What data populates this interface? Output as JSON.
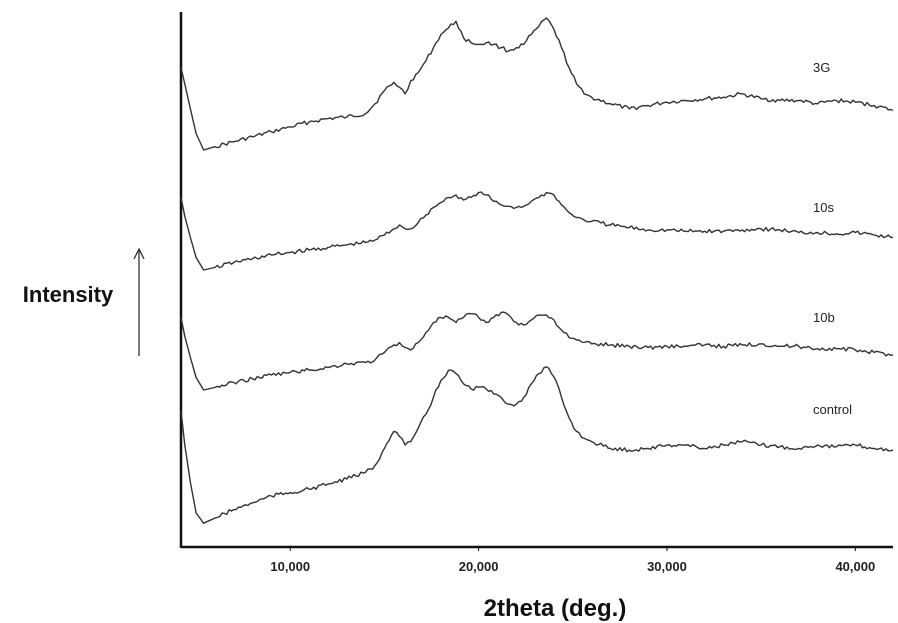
{
  "chart_data": {
    "type": "line",
    "xlabel": "2theta (deg.)",
    "ylabel": "Intensity",
    "xlim": [
      4.2,
      42
    ],
    "x_ticks": [
      {
        "value": 10,
        "label": "10,000"
      },
      {
        "value": 20,
        "label": "20,000"
      },
      {
        "value": 30,
        "label": "30,000"
      },
      {
        "value": 40,
        "label": "40,000"
      }
    ],
    "y_ticks": [],
    "grid": false,
    "legend": "inline labels at right end of each trace",
    "series": [
      {
        "name": "3G",
        "x": [
          4.2,
          4.4,
          4.7,
          5.0,
          5.4,
          6,
          7,
          8,
          9,
          10,
          11,
          12,
          13,
          14,
          14.5,
          15,
          15.5,
          15.8,
          16.1,
          16.4,
          16.8,
          17.2,
          17.6,
          18,
          18.4,
          18.8,
          19.2,
          19.6,
          20,
          20.4,
          20.8,
          21.2,
          21.6,
          22,
          22.4,
          22.8,
          23.2,
          23.6,
          24,
          24.4,
          24.8,
          25.2,
          25.6,
          26,
          27,
          28,
          29,
          30,
          31,
          32,
          33,
          34,
          35,
          36,
          37,
          38,
          39,
          40,
          41,
          42
        ],
        "y": [
          0.3,
          0.4,
          0.55,
          0.7,
          0.8,
          0.78,
          0.75,
          0.72,
          0.69,
          0.66,
          0.63,
          0.61,
          0.6,
          0.58,
          0.52,
          0.44,
          0.39,
          0.42,
          0.46,
          0.38,
          0.33,
          0.26,
          0.18,
          0.1,
          0.06,
          0.02,
          0.12,
          0.15,
          0.16,
          0.15,
          0.16,
          0.18,
          0.2,
          0.18,
          0.16,
          0.1,
          0.05,
          0.0,
          0.07,
          0.18,
          0.3,
          0.4,
          0.46,
          0.48,
          0.52,
          0.55,
          0.53,
          0.51,
          0.5,
          0.49,
          0.48,
          0.46,
          0.49,
          0.5,
          0.5,
          0.52,
          0.5,
          0.51,
          0.53,
          0.56
        ]
      },
      {
        "name": "10s",
        "x": [
          4.2,
          4.4,
          4.7,
          5.0,
          5.4,
          6,
          7,
          8,
          9,
          10,
          11,
          12,
          13,
          14,
          14.5,
          15,
          15.5,
          15.8,
          16.1,
          16.4,
          16.8,
          17.2,
          17.6,
          18,
          18.4,
          18.8,
          19.2,
          19.6,
          20,
          20.4,
          20.8,
          21.2,
          21.6,
          22,
          22.4,
          22.8,
          23.2,
          23.6,
          24,
          24.4,
          24.8,
          25.2,
          25.6,
          26,
          27,
          28,
          29,
          30,
          31,
          32,
          33,
          34,
          35,
          36,
          37,
          38,
          39,
          40,
          41,
          42
        ],
        "y": [
          0.3,
          0.45,
          0.62,
          0.78,
          0.88,
          0.86,
          0.82,
          0.79,
          0.76,
          0.74,
          0.72,
          0.7,
          0.68,
          0.66,
          0.64,
          0.6,
          0.55,
          0.52,
          0.55,
          0.55,
          0.5,
          0.44,
          0.38,
          0.34,
          0.3,
          0.28,
          0.32,
          0.3,
          0.26,
          0.28,
          0.33,
          0.36,
          0.37,
          0.38,
          0.37,
          0.33,
          0.3,
          0.26,
          0.28,
          0.36,
          0.42,
          0.46,
          0.48,
          0.49,
          0.52,
          0.54,
          0.56,
          0.56,
          0.57,
          0.57,
          0.57,
          0.56,
          0.55,
          0.56,
          0.58,
          0.58,
          0.59,
          0.58,
          0.6,
          0.62
        ]
      },
      {
        "name": "10b",
        "x": [
          4.2,
          4.4,
          4.7,
          5.0,
          5.4,
          6,
          7,
          8,
          9,
          10,
          11,
          12,
          13,
          14,
          14.5,
          15,
          15.5,
          15.8,
          16.1,
          16.4,
          16.8,
          17.2,
          17.6,
          18,
          18.4,
          18.8,
          19.2,
          19.6,
          20,
          20.4,
          20.8,
          21.2,
          21.6,
          22,
          22.4,
          22.8,
          23.2,
          23.6,
          24,
          24.4,
          24.8,
          25.2,
          25.6,
          26,
          27,
          28,
          29,
          30,
          31,
          32,
          33,
          34,
          35,
          36,
          37,
          38,
          39,
          40,
          41,
          42
        ],
        "y": [
          0.3,
          0.45,
          0.62,
          0.78,
          0.88,
          0.86,
          0.82,
          0.79,
          0.76,
          0.74,
          0.72,
          0.7,
          0.67,
          0.66,
          0.64,
          0.58,
          0.52,
          0.5,
          0.54,
          0.56,
          0.5,
          0.42,
          0.34,
          0.3,
          0.3,
          0.34,
          0.3,
          0.27,
          0.3,
          0.34,
          0.3,
          0.26,
          0.28,
          0.34,
          0.36,
          0.32,
          0.28,
          0.28,
          0.32,
          0.4,
          0.46,
          0.48,
          0.5,
          0.51,
          0.52,
          0.53,
          0.54,
          0.53,
          0.53,
          0.52,
          0.53,
          0.52,
          0.51,
          0.53,
          0.53,
          0.55,
          0.55,
          0.56,
          0.58,
          0.6
        ]
      },
      {
        "name": "control",
        "x": [
          4.2,
          4.4,
          4.7,
          5.0,
          5.4,
          6,
          7,
          8,
          9,
          10,
          11,
          12,
          13,
          14,
          14.5,
          15,
          15.5,
          15.8,
          16.1,
          16.4,
          16.8,
          17.2,
          17.6,
          18,
          18.4,
          18.8,
          19.2,
          19.6,
          20,
          20.4,
          20.8,
          21.2,
          21.6,
          22,
          22.4,
          22.8,
          23.2,
          23.6,
          24,
          24.4,
          24.8,
          25.2,
          25.6,
          26,
          27,
          28,
          29,
          30,
          31,
          32,
          33,
          34,
          35,
          36,
          37,
          38,
          39,
          40,
          41,
          42
        ],
        "y": [
          0.3,
          0.5,
          0.72,
          0.9,
          0.96,
          0.93,
          0.88,
          0.84,
          0.8,
          0.78,
          0.76,
          0.73,
          0.7,
          0.66,
          0.62,
          0.52,
          0.42,
          0.45,
          0.5,
          0.48,
          0.4,
          0.32,
          0.22,
          0.12,
          0.06,
          0.08,
          0.14,
          0.17,
          0.16,
          0.17,
          0.2,
          0.22,
          0.26,
          0.26,
          0.22,
          0.14,
          0.08,
          0.04,
          0.1,
          0.22,
          0.34,
          0.42,
          0.46,
          0.48,
          0.52,
          0.53,
          0.52,
          0.5,
          0.5,
          0.52,
          0.5,
          0.48,
          0.5,
          0.51,
          0.52,
          0.5,
          0.51,
          0.5,
          0.52,
          0.53
        ]
      }
    ]
  }
}
